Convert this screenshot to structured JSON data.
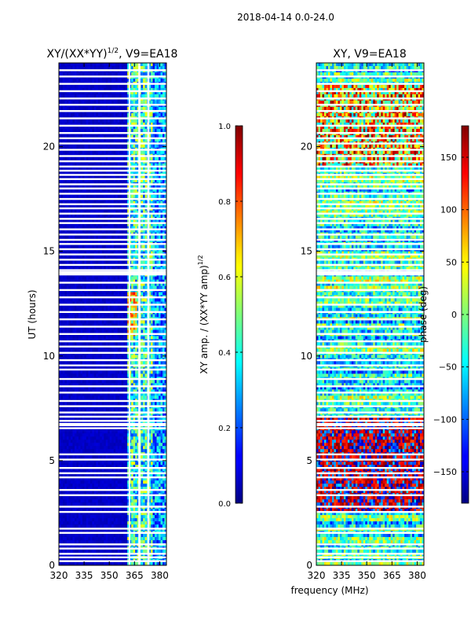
{
  "figure": {
    "suptitle": "2018-04-14 0.0-24.0",
    "xlabel_common": "frequency (MHz)"
  },
  "chart_data": [
    {
      "type": "heatmap",
      "title_main": "XY/(XX*YY)",
      "title_sup": "1/2",
      "title_tail": ", V9=EA18",
      "ylabel": "UT (hours)",
      "xlim": [
        320,
        384
      ],
      "ylim": [
        0,
        24
      ],
      "xticks": [
        320,
        335,
        350,
        365,
        380
      ],
      "yticks": [
        0,
        5,
        10,
        15,
        20
      ],
      "colorbar": {
        "label_main": "XY amp. / (XX*YY amp)",
        "label_sup": "1/2",
        "range": [
          0.0,
          1.0
        ],
        "ticks": [
          "0.0",
          "0.2",
          "0.4",
          "0.6",
          "0.8",
          "1.0"
        ],
        "colormap": "jet"
      }
    },
    {
      "type": "heatmap",
      "title": "XY, V9=EA18",
      "xlim": [
        320,
        384
      ],
      "ylim": [
        0,
        24
      ],
      "xticks": [
        320,
        335,
        350,
        365,
        380
      ],
      "yticks": [
        0,
        5,
        10,
        15,
        20
      ],
      "colorbar": {
        "label": "phase (deg)",
        "range": [
          -180,
          180
        ],
        "ticks": [
          -150,
          -100,
          -50,
          0,
          50,
          100,
          150
        ],
        "colormap": "jet"
      }
    }
  ],
  "flagged_rows_ut": [
    0.2,
    0.38,
    0.55,
    0.8,
    1.0,
    1.55,
    1.75,
    2.55,
    2.8,
    3.35,
    3.6,
    4.2,
    4.4,
    4.65,
    5.05,
    5.3,
    6.55,
    6.9,
    7.1,
    7.3,
    7.6,
    7.85,
    8.25,
    8.55,
    8.9,
    9.35,
    9.55,
    9.8,
    10.15,
    10.45,
    10.7,
    11.05,
    11.4,
    11.75,
    12.1,
    12.45,
    12.8,
    13.15,
    13.5,
    13.9,
    14.1,
    14.35,
    14.6,
    14.85,
    15.1,
    15.35,
    15.55,
    15.8,
    16.05,
    16.35,
    16.55,
    16.8,
    17.05,
    17.25,
    17.5,
    17.75,
    18.0,
    18.2,
    18.45,
    18.65,
    18.85,
    19.05,
    19.3,
    19.55,
    19.85,
    20.15,
    20.4,
    20.65,
    21.0,
    21.35,
    21.7,
    22.0,
    22.3,
    22.65,
    23.0,
    23.35,
    23.65
  ],
  "flagged_channel_bands_mhz": [
    [
      361.5,
      362.5
    ],
    [
      367.2,
      368.6
    ],
    [
      372.6,
      373.9
    ]
  ],
  "wide_flag_bands_ut": [
    [
      13.85,
      14.05
    ],
    [
      6.65,
      6.8
    ]
  ]
}
